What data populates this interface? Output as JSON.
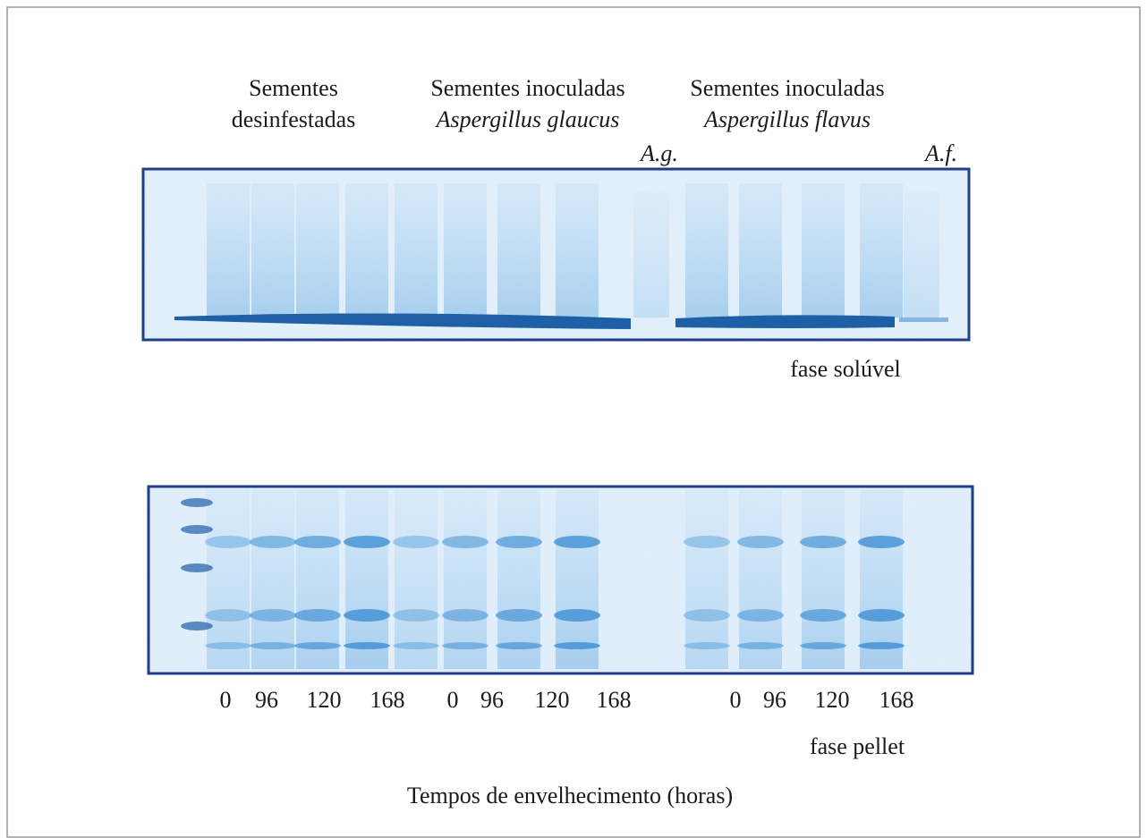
{
  "header": {
    "groups": [
      {
        "line1": "Sementes",
        "line2": "desinfestadas"
      },
      {
        "line1": "Sementes inoculadas",
        "line2": "Aspergillus glaucus"
      },
      {
        "line1": "Sementes inoculadas",
        "line2": "Aspergillus flavus"
      }
    ],
    "controls": [
      "A.g.",
      "A.f."
    ]
  },
  "panels": {
    "top_caption": "fase solúvel",
    "bottom_caption": "fase pellet"
  },
  "lanes": [
    [
      "0",
      "96",
      "120",
      "168"
    ],
    [
      "0",
      "96",
      "120",
      "168"
    ],
    [
      "0",
      "96",
      "120",
      "168"
    ]
  ],
  "x_title": "Tempos de envelhecimento (horas)"
}
